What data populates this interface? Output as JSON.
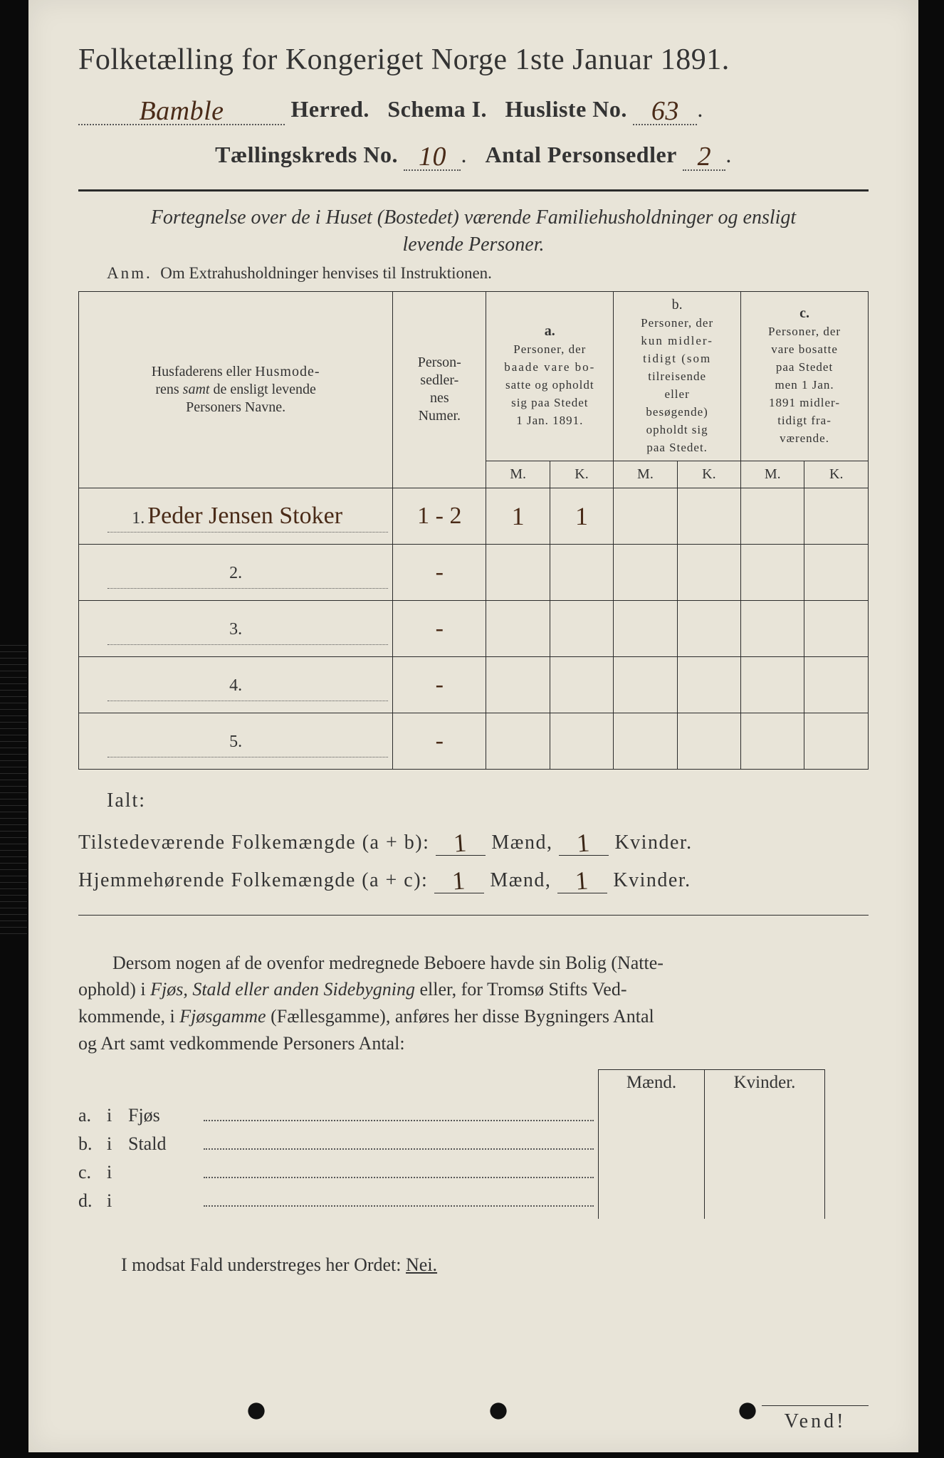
{
  "colors": {
    "page_bg": "#e8e4d8",
    "ink": "#2b2b2b",
    "handwriting": "#4a2b18",
    "scan_bg": "#0a0a0a"
  },
  "title": "Folketælling for Kongeriget Norge 1ste Januar 1891.",
  "line2": {
    "herred_value": "Bamble",
    "herred_label": "Herred.",
    "schema_label": "Schema I.",
    "husliste_label": "Husliste No.",
    "husliste_value": "63"
  },
  "line3": {
    "kreds_label": "Tællingskreds No.",
    "kreds_value": "10",
    "antal_label": "Antal Personsedler",
    "antal_value": "2"
  },
  "subtitle_line1": "Fortegnelse over de i Huset (Bostedet) værende Familiehusholdninger og ensligt",
  "subtitle_line2": "levende Personer.",
  "anm_label": "Anm.",
  "anm_text": "Om Extrahusholdninger henvises til Instruktionen.",
  "table": {
    "head_col1": "Husfaderens eller Husmoderens samt de ensligt levende Personers Navne.",
    "head_col1_husmode": "Husmode-",
    "head_col1_line1": "Husfaderens eller",
    "head_col1_line2": "rens",
    "head_col1_samt": "samt",
    "head_col1_rest": "de ensligt levende",
    "head_col1_line3": "Personers Navne.",
    "head_col2_l1": "Person-",
    "head_col2_l2": "sedler-",
    "head_col2_l3": "nes",
    "head_col2_l4": "Numer.",
    "head_a": "a.",
    "head_a_txt_l1": "Personer, der",
    "head_a_txt_l2": "baade vare bo-",
    "head_a_txt_l3": "satte og opholdt",
    "head_a_txt_l4": "sig paa Stedet",
    "head_a_txt_l5": "1 Jan. 1891.",
    "head_b": "b.",
    "head_b_txt_l1": "Personer, der",
    "head_b_txt_l2": "kun midler-",
    "head_b_txt_l3": "tidigt (som",
    "head_b_txt_l4": "tilreisende",
    "head_b_txt_l5": "eller",
    "head_b_txt_l6": "besøgende)",
    "head_b_txt_l7": "opholdt sig",
    "head_b_txt_l8": "paa Stedet.",
    "head_c": "c.",
    "head_c_txt_l1": "Personer, der",
    "head_c_txt_l2": "vare bosatte",
    "head_c_txt_l3": "paa Stedet",
    "head_c_txt_l4": "men 1 Jan.",
    "head_c_txt_l5": "1891 midler-",
    "head_c_txt_l6": "tidigt fra-",
    "head_c_txt_l7": "værende.",
    "m": "M.",
    "k": "K.",
    "rows": [
      {
        "num": "1.",
        "name": "Peder Jensen Stoker",
        "sedler": "1 - 2",
        "a_m": "1",
        "a_k": "1",
        "b_m": "",
        "b_k": "",
        "c_m": "",
        "c_k": ""
      },
      {
        "num": "2.",
        "name": "",
        "sedler": "-",
        "a_m": "",
        "a_k": "",
        "b_m": "",
        "b_k": "",
        "c_m": "",
        "c_k": ""
      },
      {
        "num": "3.",
        "name": "",
        "sedler": "-",
        "a_m": "",
        "a_k": "",
        "b_m": "",
        "b_k": "",
        "c_m": "",
        "c_k": ""
      },
      {
        "num": "4.",
        "name": "",
        "sedler": "-",
        "a_m": "",
        "a_k": "",
        "b_m": "",
        "b_k": "",
        "c_m": "",
        "c_k": ""
      },
      {
        "num": "5.",
        "name": "",
        "sedler": "-",
        "a_m": "",
        "a_k": "",
        "b_m": "",
        "b_k": "",
        "c_m": "",
        "c_k": ""
      }
    ]
  },
  "totals": {
    "ialt": "Ialt:",
    "line1_a": "Tilstedeværende Folkemængde (a + b):",
    "line2_a": "Hjemmehørende Folkemængde (a + c):",
    "maend": "Mænd,",
    "kvinder": "Kvinder.",
    "val_m1": "1",
    "val_k1": "1",
    "val_m2": "1",
    "val_k2": "1"
  },
  "paragraph": "Dersom nogen af de ovenfor medregnede Beboere havde sin Bolig (Natteophold) i Fjøs, Stald eller anden Sidebygning eller, for Tromsø Stifts Vedkommende, i Fjøsgamme (Fællesgamme), anføres her disse Bygningers Antal og Art samt vedkommende Personers Antal:",
  "para_parts": {
    "p1": "Dersom nogen af de ovenfor medregnede Beboere havde sin Bolig (Natte-",
    "p2": "ophold) i ",
    "p2_it": "Fjøs, Stald eller anden Sidebygning",
    "p2b": " eller, for Tromsø Stifts Ved-",
    "p3": "kommende, i ",
    "p3_it": "Fjøsgamme",
    "p3b": " (Fællesgamme), anføres her disse Bygningers Antal",
    "p4": "og Art samt vedkommende Personers Antal:"
  },
  "subtable": {
    "hdr_m": "Mænd.",
    "hdr_k": "Kvinder.",
    "rows": [
      {
        "lab": "a.",
        "i": "i",
        "name": "Fjøs"
      },
      {
        "lab": "b.",
        "i": "i",
        "name": "Stald"
      },
      {
        "lab": "c.",
        "i": "i",
        "name": ""
      },
      {
        "lab": "d.",
        "i": "i",
        "name": ""
      }
    ]
  },
  "modsat": "I modsat Fald understreges her Ordet:",
  "nei": "Nei.",
  "vend": "Vend!"
}
